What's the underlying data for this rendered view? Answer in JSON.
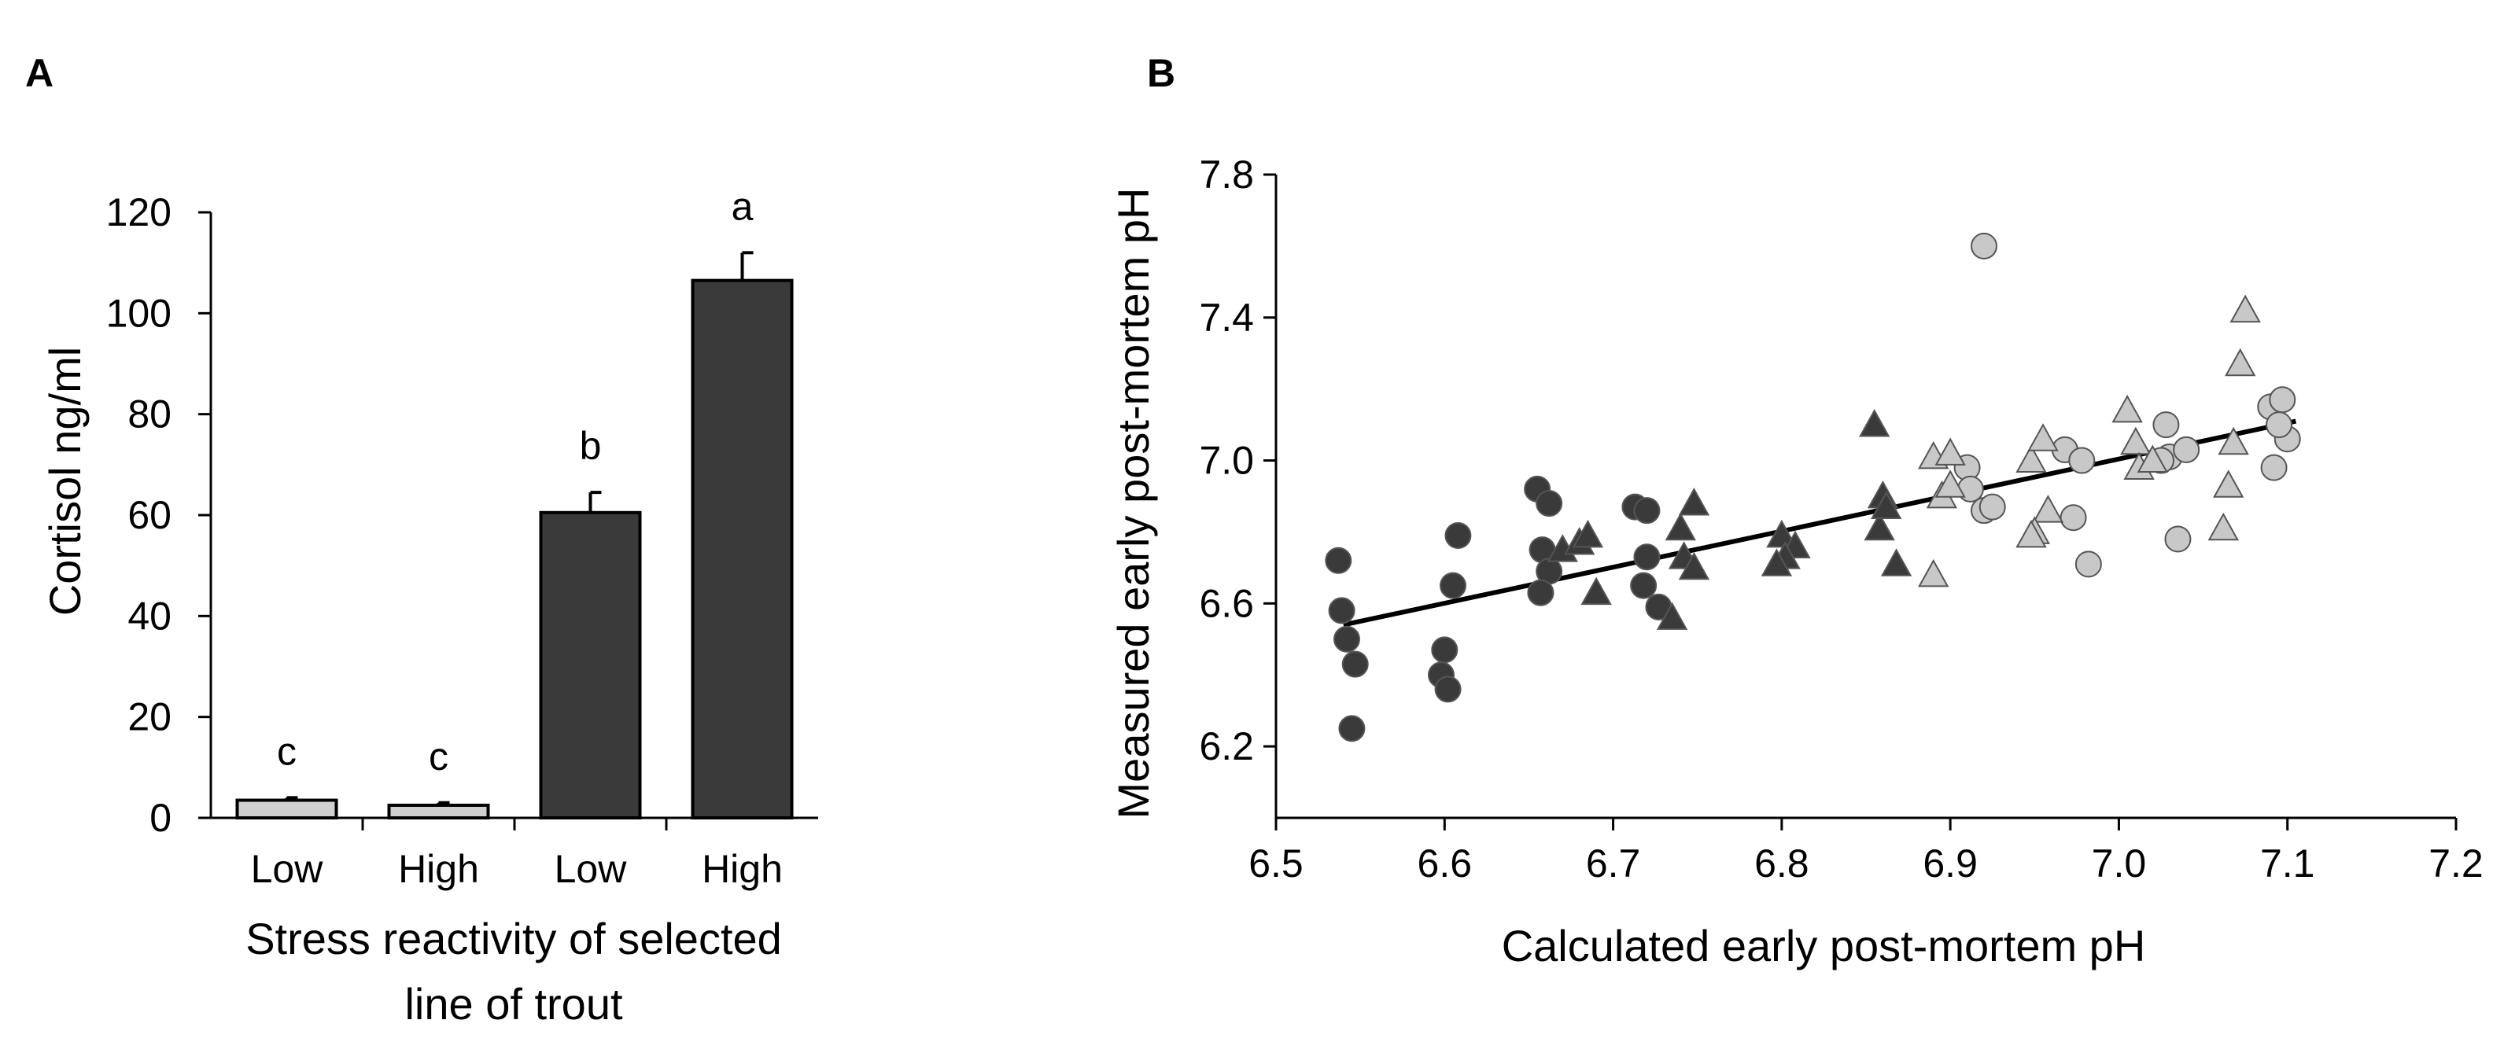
{
  "chart_data": [
    {
      "panel_label": "A",
      "type": "bar",
      "ylabel": "Cortisol ng/ml",
      "xlabel_lines": [
        "Stress reactivity of selected",
        "line of trout"
      ],
      "ylim": [
        0,
        120
      ],
      "yticks": [
        0,
        20,
        40,
        60,
        80,
        100,
        120
      ],
      "grid": false,
      "categories": [
        "Low",
        "High",
        "Low",
        "High"
      ],
      "values": [
        3.5,
        2.5,
        60.5,
        106.5
      ],
      "errors": [
        0.5,
        0.5,
        4,
        5.5
      ],
      "labels": [
        "c",
        "c",
        "b",
        "a"
      ],
      "bar_colors": [
        "#d0d0d0",
        "#d0d0d0",
        "#3a3a3a",
        "#3a3a3a"
      ]
    },
    {
      "panel_label": "B",
      "type": "scatter",
      "xlabel": "Calculated early post-mortem pH",
      "ylabel": "Measured early post-mortem pH",
      "xlim": [
        6.5,
        7.2
      ],
      "ylim": [
        6.0,
        7.8
      ],
      "xticks": [
        "6.5",
        "6.6",
        "6.7",
        "6.8",
        "6.9",
        "7.0",
        "7.1",
        "7.2"
      ],
      "yticks": [
        "6.2",
        "6.6",
        "7.0",
        "7.4",
        "7.8"
      ],
      "grid": false,
      "trendline": {
        "x": [
          6.54,
          7.105
        ],
        "y": [
          6.54,
          7.11
        ]
      },
      "series": [
        {
          "marker": "circle",
          "color": "#3a3a3a",
          "points": [
            [
              6.537,
              6.72
            ],
            [
              6.539,
              6.58
            ],
            [
              6.542,
              6.5
            ],
            [
              6.547,
              6.43
            ],
            [
              6.545,
              6.25
            ],
            [
              6.6,
              6.47
            ],
            [
              6.598,
              6.4
            ],
            [
              6.602,
              6.36
            ],
            [
              6.605,
              6.65
            ],
            [
              6.608,
              6.79
            ],
            [
              6.655,
              6.92
            ],
            [
              6.662,
              6.88
            ],
            [
              6.658,
              6.75
            ],
            [
              6.662,
              6.69
            ],
            [
              6.657,
              6.63
            ],
            [
              6.713,
              6.87
            ],
            [
              6.72,
              6.86
            ],
            [
              6.72,
              6.73
            ],
            [
              6.718,
              6.65
            ],
            [
              6.727,
              6.59
            ]
          ]
        },
        {
          "marker": "triangle",
          "color": "#3a3a3a",
          "points": [
            [
              6.67,
              6.75
            ],
            [
              6.68,
              6.77
            ],
            [
              6.685,
              6.79
            ],
            [
              6.69,
              6.63
            ],
            [
              6.748,
              6.88
            ],
            [
              6.74,
              6.81
            ],
            [
              6.742,
              6.73
            ],
            [
              6.748,
              6.7
            ],
            [
              6.735,
              6.56
            ],
            [
              6.8,
              6.79
            ],
            [
              6.808,
              6.76
            ],
            [
              6.802,
              6.73
            ],
            [
              6.797,
              6.71
            ],
            [
              6.855,
              7.1
            ],
            [
              6.86,
              6.9
            ],
            [
              6.858,
              6.81
            ],
            [
              6.862,
              6.87
            ],
            [
              6.868,
              6.71
            ]
          ]
        },
        {
          "marker": "circle",
          "color": "#c8c8c8",
          "points": [
            [
              6.92,
              7.6
            ],
            [
              6.91,
              6.98
            ],
            [
              6.912,
              6.92
            ],
            [
              6.92,
              6.86
            ],
            [
              6.925,
              6.87
            ],
            [
              6.968,
              7.03
            ],
            [
              6.978,
              7.0
            ],
            [
              6.973,
              6.84
            ],
            [
              6.982,
              6.71
            ],
            [
              7.028,
              7.1
            ],
            [
              7.03,
              7.01
            ],
            [
              7.025,
              7.0
            ],
            [
              7.04,
              7.03
            ],
            [
              7.035,
              6.78
            ],
            [
              7.09,
              7.15
            ],
            [
              7.097,
              7.17
            ],
            [
              7.1,
              7.06
            ],
            [
              7.092,
              6.98
            ],
            [
              7.095,
              7.1
            ]
          ]
        },
        {
          "marker": "triangle",
          "color": "#c8c8c8",
          "points": [
            [
              6.89,
              7.01
            ],
            [
              6.9,
              7.02
            ],
            [
              6.895,
              6.9
            ],
            [
              6.9,
              6.93
            ],
            [
              6.89,
              6.68
            ],
            [
              6.948,
              7.0
            ],
            [
              6.955,
              7.06
            ],
            [
              6.958,
              6.86
            ],
            [
              6.95,
              6.8
            ],
            [
              6.948,
              6.79
            ],
            [
              7.005,
              7.14
            ],
            [
              7.01,
              7.05
            ],
            [
              7.012,
              6.98
            ],
            [
              7.02,
              7.0
            ],
            [
              7.075,
              7.42
            ],
            [
              7.072,
              7.27
            ],
            [
              7.068,
              7.05
            ],
            [
              7.065,
              6.93
            ],
            [
              7.062,
              6.81
            ]
          ]
        }
      ]
    }
  ]
}
